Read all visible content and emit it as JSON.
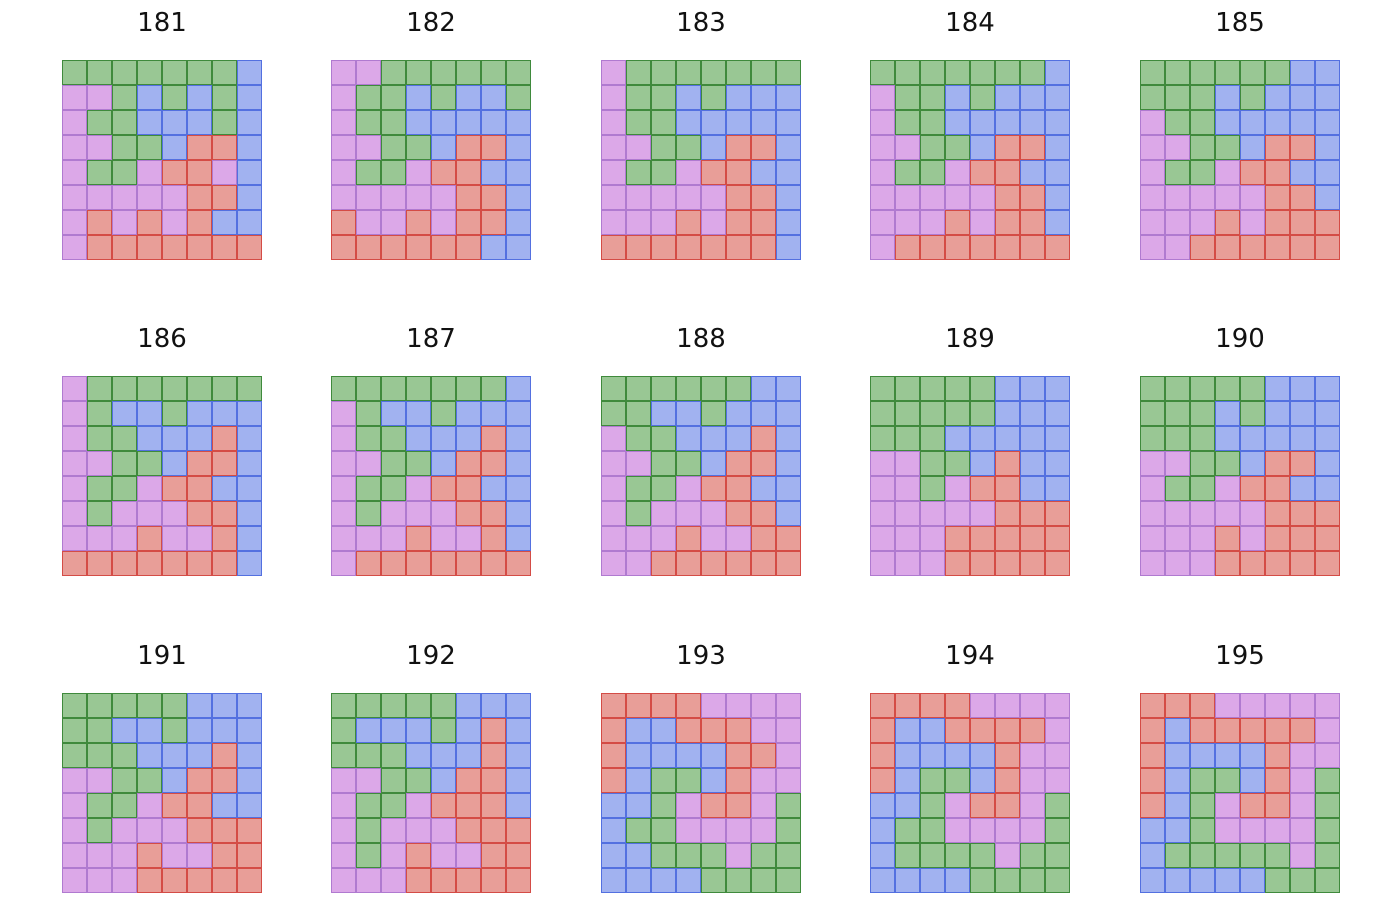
{
  "colors": {
    "G": {
      "fill": "#99c794",
      "stroke": "#3f8a3c"
    },
    "B": {
      "fill": "#a1b2f0",
      "stroke": "#5370e0"
    },
    "P": {
      "fill": "#dca8e8",
      "stroke": "#b07ad0"
    },
    "R": {
      "fill": "#e89e98",
      "stroke": "#d44c46"
    }
  },
  "panels": [
    {
      "title": "181",
      "grid": [
        "GGGGGGGB",
        "PPGBGBGB",
        "PGGBBBGB",
        "PPGGBRRB",
        "PGGPRRPB",
        "PPPPPRRB",
        "PRPRPRBB",
        "PRRRRRRR"
      ]
    },
    {
      "title": "182",
      "grid": [
        "PPGGGGGG",
        "PGGBGBBG",
        "PGGBBBBB",
        "PPGGBRRB",
        "PGGPRRBB",
        "PPPPPRRB",
        "RPPRPRRB",
        "RRRRRRBB"
      ]
    },
    {
      "title": "183",
      "grid": [
        "PGGGGGGG",
        "PGGBGBBB",
        "PGGBBBBB",
        "PPGGBRRB",
        "PGGPRRBB",
        "PPPPPRRB",
        "PPPRPRRB",
        "RRRRRRRB"
      ]
    },
    {
      "title": "184",
      "grid": [
        "GGGGGGGB",
        "PGGBGBBB",
        "PGGBBBBB",
        "PPGGBRRB",
        "PGGPRRBB",
        "PPPPPRRB",
        "PPPRPRRB",
        "PRRRRRRR"
      ]
    },
    {
      "title": "185",
      "grid": [
        "GGGGGGBB",
        "GGGBGBBB",
        "PGGBBBBB",
        "PPGGBRRB",
        "PGGPRRBB",
        "PPPPPRRB",
        "PPPRPRRR",
        "PPRRRRRR"
      ]
    },
    {
      "title": "186",
      "grid": [
        "PGGGGGGG",
        "PGBBGBBB",
        "PGGBBBRB",
        "PPGGBRRB",
        "PGGPRRBB",
        "PGPPPRRB",
        "PPPRPPRB",
        "RRRRRRRB"
      ]
    },
    {
      "title": "187",
      "grid": [
        "GGGGGGGB",
        "PGBBGBBB",
        "PGGBBBRB",
        "PPGGBRRB",
        "PGGPRRBB",
        "PGPPPRRB",
        "PPPRPPRB",
        "PRRRRRRR"
      ]
    },
    {
      "title": "188",
      "grid": [
        "GGGGGGBB",
        "GGBBGBBB",
        "PGGBBBRB",
        "PPGGBRRB",
        "PGGPRRBB",
        "PGPPPRRB",
        "PPPRPPRR",
        "PPRRRRRR"
      ]
    },
    {
      "title": "189",
      "grid": [
        "GGGGGBBB",
        "GGGGGBBB",
        "GGGBBBBB",
        "PPGGBRBB",
        "PPGPRRBB",
        "PPPPPRRR",
        "PPPRRRRR",
        "PPPRRRRR"
      ]
    },
    {
      "title": "190",
      "grid": [
        "GGGGGBBB",
        "GGGBGBBB",
        "GGGBBBBB",
        "PPGGBRRB",
        "PGGPRRBB",
        "PPPPPRRR",
        "PPPRPRRR",
        "PPPRRRRR"
      ]
    },
    {
      "title": "191",
      "grid": [
        "GGGGGBBB",
        "GGBBGBBB",
        "GGGBBBRB",
        "PPGGBRRB",
        "PGGPRRBB",
        "PGPPPRRR",
        "PPPRPPRR",
        "PPPRRRRR"
      ]
    },
    {
      "title": "192",
      "grid": [
        "GGGGGBBB",
        "GBBBGBRB",
        "GGGBBBRB",
        "PPGGBRRB",
        "PGGPRRRB",
        "PGPPPRRR",
        "PGPRPPRR",
        "PPPRRRRR"
      ]
    },
    {
      "title": "193",
      "grid": [
        "RRRRPPPP",
        "RBBRRRPP",
        "RBBBBRRP",
        "RBGGBRPP",
        "BBGPRRPG",
        "BGGPPPPG",
        "BBGGGPGG",
        "BBBBGGGG"
      ]
    },
    {
      "title": "194",
      "grid": [
        "RRRRPPPP",
        "RBBRRRRP",
        "RBBBBRPP",
        "RBGGBRPP",
        "BBGPRRPG",
        "BGGPPPPG",
        "BGGGGPGG",
        "BBBBGGGG"
      ]
    },
    {
      "title": "195",
      "grid": [
        "RRRPPPPP",
        "RBRRRRRP",
        "RBBBBRPP",
        "RBGGBRPG",
        "RBGPRRPG",
        "BBGPPPPG",
        "BGGGGGPG",
        "BBBBBGGG"
      ]
    }
  ]
}
